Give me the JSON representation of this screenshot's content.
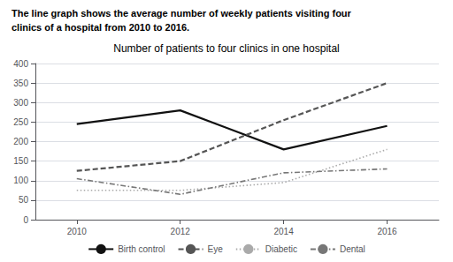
{
  "chart_data": {
    "type": "line",
    "title": "Number of patients to four clinics in one hospital",
    "annotations": [
      "The line graph shows the average number of weekly patients visiting four",
      "clinics of a hospital from 2010 to 2016."
    ],
    "x": [
      2010,
      2012,
      2014,
      2016
    ],
    "series": [
      {
        "name": "Birth control",
        "color": "#111111",
        "line_style": "solid",
        "values": [
          245,
          280,
          180,
          240
        ]
      },
      {
        "name": "Eye",
        "color": "#555555",
        "line_style": "dashed",
        "values": [
          125,
          150,
          255,
          350
        ]
      },
      {
        "name": "Diabetic",
        "color": "#aaaaaa",
        "line_style": "dotted",
        "values": [
          75,
          75,
          95,
          180
        ]
      },
      {
        "name": "Dental",
        "color": "#777777",
        "line_style": "dashdot",
        "values": [
          105,
          65,
          120,
          130
        ]
      }
    ],
    "xlim": [
      2009.2,
      2017.0
    ],
    "xticks": [
      2010,
      2012,
      2014,
      2016
    ],
    "ylim": [
      0,
      400
    ],
    "yticks": [
      0,
      50,
      100,
      150,
      200,
      250,
      300,
      350,
      400
    ],
    "grid": true,
    "legend": "bottom"
  }
}
